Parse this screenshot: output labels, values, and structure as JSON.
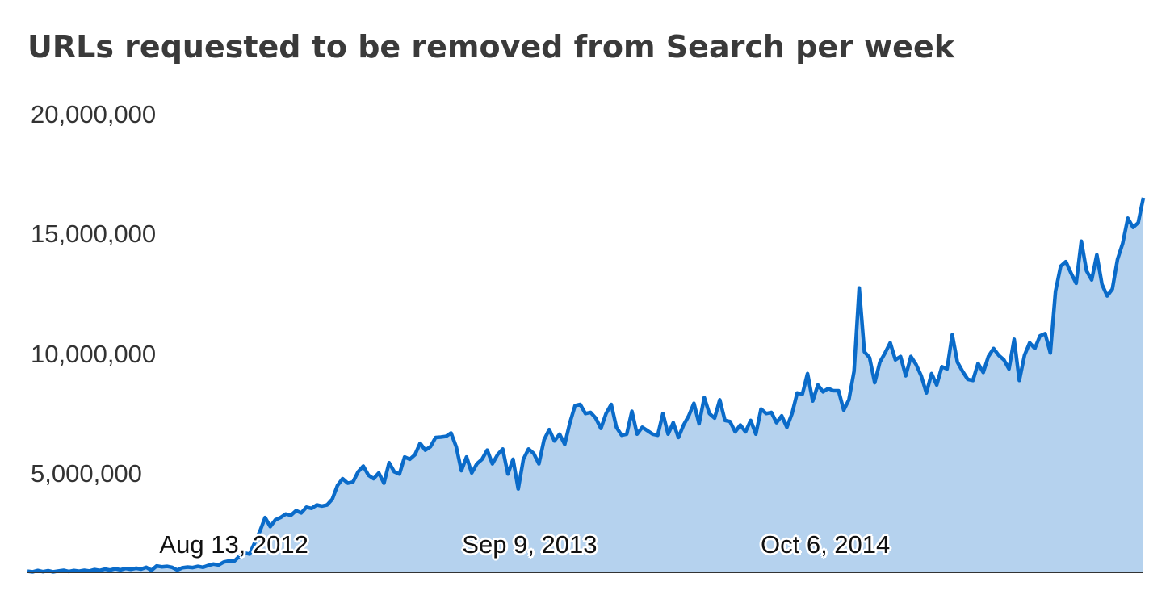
{
  "chart_data": {
    "type": "area",
    "title": "URLs requested to be removed from Search per week",
    "xlabel": "",
    "ylabel": "",
    "ylim": [
      0,
      20000000
    ],
    "y_ticks": [
      "20,000,000",
      "15,000,000",
      "10,000,000",
      "5,000,000"
    ],
    "x_ticks": [
      "Aug 13, 2012",
      "Sep 9, 2013",
      "Oct 6, 2014"
    ],
    "x_tick_positions": [
      0.185,
      0.45,
      0.715
    ],
    "grid": false,
    "legend": "none",
    "line_color": "#0a6bc9",
    "fill_color": "#b5d2ee",
    "series": [
      {
        "values": [
          50000,
          20000,
          80000,
          30000,
          70000,
          20000,
          60000,
          90000,
          40000,
          80000,
          50000,
          90000,
          60000,
          120000,
          80000,
          140000,
          100000,
          160000,
          110000,
          170000,
          130000,
          180000,
          140000,
          220000,
          90000,
          280000,
          240000,
          260000,
          220000,
          100000,
          200000,
          230000,
          210000,
          260000,
          220000,
          300000,
          360000,
          320000,
          450000,
          500000,
          480000,
          700000,
          850000,
          800000,
          1300000,
          1800000,
          2400000,
          2000000,
          2300000,
          2400000,
          2550000,
          2500000,
          2700000,
          2600000,
          2850000,
          2800000,
          2950000,
          2900000,
          2950000,
          3200000,
          3800000,
          4100000,
          3900000,
          3950000,
          4400000,
          4650000,
          4250000,
          4100000,
          4350000,
          3900000,
          4800000,
          4400000,
          4300000,
          5050000,
          4950000,
          5150000,
          5650000,
          5350000,
          5500000,
          5900000,
          5920000,
          5950000,
          6100000,
          5500000,
          4450000,
          5050000,
          4350000,
          4750000,
          4950000,
          5350000,
          4750000,
          5150000,
          5400000,
          4300000,
          4950000,
          3650000,
          4950000,
          5400000,
          5200000,
          4750000,
          5800000,
          6250000,
          5750000,
          6050000,
          5600000,
          6550000,
          7300000,
          7350000,
          6950000,
          7000000,
          6750000,
          6300000,
          6950000,
          7350000,
          6350000,
          6000000,
          6050000,
          7050000,
          6050000,
          6350000,
          6200000,
          6050000,
          6000000,
          6950000,
          6050000,
          6550000,
          5900000,
          6450000,
          6850000,
          7400000,
          6500000,
          7650000,
          6950000,
          6750000,
          7550000,
          6650000,
          6600000,
          6150000,
          6450000,
          6150000,
          6650000,
          6050000,
          7150000,
          6950000,
          7000000,
          6550000,
          6850000,
          6350000,
          6950000,
          7850000,
          7800000,
          8700000,
          7500000,
          8200000,
          7900000,
          8050000,
          7950000,
          7950000,
          7100000,
          7550000,
          8800000,
          12450000,
          9650000,
          9400000,
          8300000,
          9200000,
          9600000,
          10050000,
          9300000,
          9450000,
          8600000,
          9450000,
          9100000,
          8600000,
          7850000,
          8700000,
          8200000,
          9000000,
          8900000,
          10400000,
          9200000,
          8800000,
          8450000,
          8400000,
          9150000,
          8750000,
          9450000,
          9800000,
          9500000,
          9300000,
          8900000,
          10200000,
          8400000,
          9500000,
          10050000,
          9800000,
          10350000,
          10450000,
          9600000,
          12300000,
          13400000,
          13600000,
          13100000,
          12650000,
          14500000,
          13200000,
          12800000,
          13900000,
          12600000,
          12100000,
          12400000,
          13700000,
          14400000,
          15500000,
          15100000,
          15300000,
          16400000
        ]
      }
    ]
  }
}
